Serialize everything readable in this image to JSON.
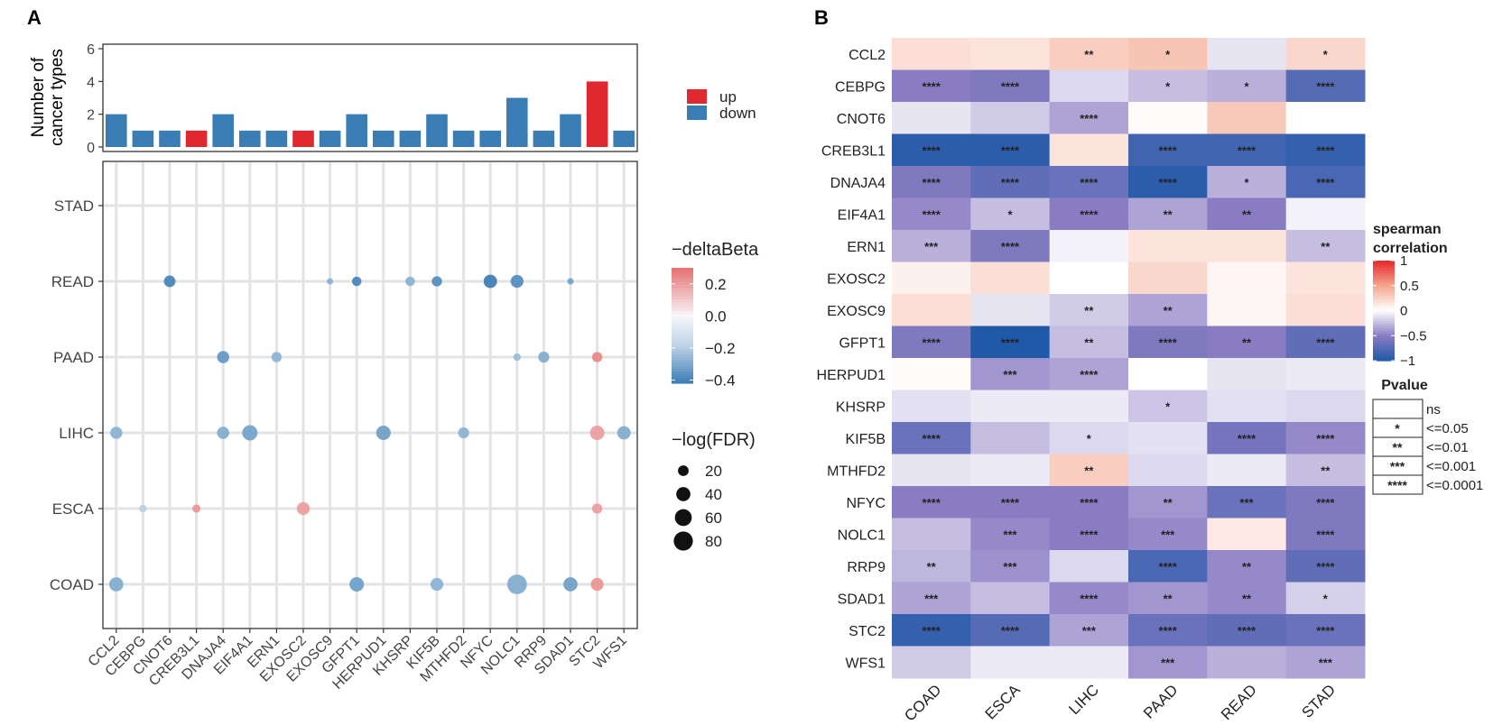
{
  "chart_data": [
    {
      "panel": "A",
      "type": "bar",
      "title": "",
      "ylabel": "Number of cancer types",
      "ylim": [
        0,
        6
      ],
      "yticks": [
        "0",
        "2",
        "4",
        "6"
      ],
      "categories": [
        "CCL2",
        "CEBPG",
        "CNOT6",
        "CREB3L1",
        "DNAJA4",
        "EIF4A1",
        "ERN1",
        "EXOSC2",
        "EXOSC9",
        "GFPT1",
        "HERPUD1",
        "KHSRP",
        "KIF5B",
        "MTHFD2",
        "NFYC",
        "NOLC1",
        "RRP9",
        "SDAD1",
        "STC2",
        "WFS1"
      ],
      "values": [
        2,
        1,
        1,
        1,
        2,
        1,
        1,
        1,
        1,
        2,
        1,
        1,
        2,
        1,
        1,
        3,
        1,
        2,
        4,
        1
      ],
      "direction": [
        "down",
        "down",
        "down",
        "up",
        "down",
        "down",
        "down",
        "up",
        "down",
        "down",
        "down",
        "down",
        "down",
        "down",
        "down",
        "down",
        "down",
        "down",
        "up",
        "down"
      ],
      "legend": [
        {
          "key": "up",
          "label": "up",
          "color": "#e0292e"
        },
        {
          "key": "down",
          "label": "down",
          "color": "#3a7db5"
        }
      ]
    },
    {
      "panel": "A",
      "type": "scatter",
      "x_categories": [
        "CCL2",
        "CEBPG",
        "CNOT6",
        "CREB3L1",
        "DNAJA4",
        "EIF4A1",
        "ERN1",
        "EXOSC2",
        "EXOSC9",
        "GFPT1",
        "HERPUD1",
        "KHSRP",
        "KIF5B",
        "MTHFD2",
        "NFYC",
        "NOLC1",
        "RRP9",
        "SDAD1",
        "STC2",
        "WFS1"
      ],
      "y_categories": [
        "COAD",
        "ESCA",
        "LIHC",
        "PAAD",
        "READ",
        "STAD"
      ],
      "points": [
        {
          "gene": "CNOT6",
          "cancer": "READ",
          "deltaBeta": -0.4,
          "logFDR": 25
        },
        {
          "gene": "EXOSC9",
          "cancer": "READ",
          "deltaBeta": -0.28,
          "logFDR": 5
        },
        {
          "gene": "GFPT1",
          "cancer": "READ",
          "deltaBeta": -0.4,
          "logFDR": 15
        },
        {
          "gene": "KHSRP",
          "cancer": "READ",
          "deltaBeta": -0.28,
          "logFDR": 15
        },
        {
          "gene": "KIF5B",
          "cancer": "READ",
          "deltaBeta": -0.38,
          "logFDR": 18
        },
        {
          "gene": "NFYC",
          "cancer": "READ",
          "deltaBeta": -0.42,
          "logFDR": 35
        },
        {
          "gene": "NOLC1",
          "cancer": "READ",
          "deltaBeta": -0.38,
          "logFDR": 32
        },
        {
          "gene": "SDAD1",
          "cancer": "READ",
          "deltaBeta": -0.32,
          "logFDR": 5
        },
        {
          "gene": "DNAJA4",
          "cancer": "PAAD",
          "deltaBeta": -0.35,
          "logFDR": 28
        },
        {
          "gene": "ERN1",
          "cancer": "PAAD",
          "deltaBeta": -0.28,
          "logFDR": 18
        },
        {
          "gene": "NOLC1",
          "cancer": "PAAD",
          "deltaBeta": -0.25,
          "logFDR": 8
        },
        {
          "gene": "RRP9",
          "cancer": "PAAD",
          "deltaBeta": -0.3,
          "logFDR": 22
        },
        {
          "gene": "STC2",
          "cancer": "PAAD",
          "deltaBeta": 0.25,
          "logFDR": 18
        },
        {
          "gene": "CCL2",
          "cancer": "LIHC",
          "deltaBeta": -0.28,
          "logFDR": 28
        },
        {
          "gene": "DNAJA4",
          "cancer": "LIHC",
          "deltaBeta": -0.3,
          "logFDR": 28
        },
        {
          "gene": "EIF4A1",
          "cancer": "LIHC",
          "deltaBeta": -0.32,
          "logFDR": 48
        },
        {
          "gene": "HERPUD1",
          "cancer": "LIHC",
          "deltaBeta": -0.33,
          "logFDR": 42
        },
        {
          "gene": "MTHFD2",
          "cancer": "LIHC",
          "deltaBeta": -0.28,
          "logFDR": 22
        },
        {
          "gene": "STC2",
          "cancer": "LIHC",
          "deltaBeta": 0.2,
          "logFDR": 42
        },
        {
          "gene": "WFS1",
          "cancer": "LIHC",
          "deltaBeta": -0.3,
          "logFDR": 35
        },
        {
          "gene": "CEBPG",
          "cancer": "ESCA",
          "deltaBeta": -0.2,
          "logFDR": 8
        },
        {
          "gene": "CREB3L1",
          "cancer": "ESCA",
          "deltaBeta": 0.22,
          "logFDR": 10
        },
        {
          "gene": "EXOSC2",
          "cancer": "ESCA",
          "deltaBeta": 0.2,
          "logFDR": 32
        },
        {
          "gene": "STC2",
          "cancer": "ESCA",
          "deltaBeta": 0.2,
          "logFDR": 18
        },
        {
          "gene": "CCL2",
          "cancer": "COAD",
          "deltaBeta": -0.3,
          "logFDR": 40
        },
        {
          "gene": "GFPT1",
          "cancer": "COAD",
          "deltaBeta": -0.33,
          "logFDR": 42
        },
        {
          "gene": "KIF5B",
          "cancer": "COAD",
          "deltaBeta": -0.28,
          "logFDR": 32
        },
        {
          "gene": "NOLC1",
          "cancer": "COAD",
          "deltaBeta": -0.3,
          "logFDR": 85
        },
        {
          "gene": "SDAD1",
          "cancer": "COAD",
          "deltaBeta": -0.33,
          "logFDR": 40
        },
        {
          "gene": "STC2",
          "cancer": "COAD",
          "deltaBeta": 0.22,
          "logFDR": 32
        }
      ],
      "color_legend": {
        "title": "−deltaBeta",
        "ticks": [
          "0.2",
          "0.0",
          "−0.2",
          "−0.4"
        ],
        "tick_values": [
          0.2,
          0.0,
          -0.2,
          -0.4
        ],
        "range": [
          -0.42,
          0.3
        ]
      },
      "size_legend": {
        "title": "−log(FDR)",
        "values": [
          20,
          40,
          60,
          80
        ],
        "labels": [
          "20",
          "40",
          "60",
          "80"
        ]
      }
    },
    {
      "panel": "B",
      "type": "heatmap",
      "columns": [
        "COAD",
        "ESCA",
        "LIHC",
        "PAAD",
        "READ",
        "STAD"
      ],
      "rows": [
        "CCL2",
        "CEBPG",
        "CNOT6",
        "CREB3L1",
        "DNAJA4",
        "EIF4A1",
        "ERN1",
        "EXOSC2",
        "EXOSC9",
        "GFPT1",
        "HERPUD1",
        "KHSRP",
        "KIF5B",
        "MTHFD2",
        "NFYC",
        "NOLC1",
        "RRP9",
        "SDAD1",
        "STC2",
        "WFS1"
      ],
      "values": [
        [
          0.18,
          0.15,
          0.28,
          0.33,
          -0.1,
          0.22
        ],
        [
          -0.5,
          -0.55,
          -0.15,
          -0.25,
          -0.3,
          -0.75
        ],
        [
          -0.1,
          -0.2,
          -0.35,
          0.02,
          0.3,
          0.0
        ],
        [
          -0.95,
          -0.95,
          0.15,
          -0.85,
          -0.85,
          -0.9
        ],
        [
          -0.55,
          -0.7,
          -0.65,
          -0.95,
          -0.3,
          -0.8
        ],
        [
          -0.45,
          -0.25,
          -0.5,
          -0.35,
          -0.5,
          -0.05
        ],
        [
          -0.3,
          -0.55,
          -0.05,
          0.15,
          0.15,
          -0.25
        ],
        [
          0.08,
          0.18,
          0.0,
          0.22,
          0.05,
          0.15
        ],
        [
          0.18,
          -0.1,
          -0.2,
          -0.35,
          0.05,
          0.18
        ],
        [
          -0.55,
          -1.0,
          -0.25,
          -0.55,
          -0.5,
          -0.7
        ],
        [
          0.02,
          -0.4,
          -0.35,
          0.0,
          -0.1,
          -0.08
        ],
        [
          -0.12,
          -0.08,
          -0.08,
          -0.22,
          -0.12,
          -0.15
        ],
        [
          -0.65,
          -0.25,
          -0.15,
          -0.12,
          -0.6,
          -0.45
        ],
        [
          -0.1,
          -0.08,
          0.28,
          -0.15,
          -0.08,
          -0.25
        ],
        [
          -0.5,
          -0.5,
          -0.5,
          -0.4,
          -0.65,
          -0.55
        ],
        [
          -0.25,
          -0.45,
          -0.5,
          -0.45,
          0.12,
          -0.55
        ],
        [
          -0.28,
          -0.42,
          -0.15,
          -0.8,
          -0.45,
          -0.7
        ],
        [
          -0.35,
          -0.25,
          -0.45,
          -0.4,
          -0.45,
          -0.18
        ],
        [
          -0.9,
          -0.75,
          -0.35,
          -0.65,
          -0.7,
          -0.65
        ],
        [
          -0.2,
          -0.08,
          -0.08,
          -0.4,
          -0.3,
          -0.35
        ]
      ],
      "significance": [
        [
          "",
          "",
          "**",
          "*",
          "",
          "*"
        ],
        [
          "****",
          "****",
          "",
          "*",
          "*",
          "****"
        ],
        [
          "",
          "",
          "****",
          "",
          "",
          ""
        ],
        [
          "****",
          "****",
          "",
          "****",
          "****",
          "****"
        ],
        [
          "****",
          "****",
          "****",
          "****",
          "*",
          "****"
        ],
        [
          "****",
          "*",
          "****",
          "**",
          "**",
          ""
        ],
        [
          "***",
          "****",
          "",
          "",
          "",
          "**"
        ],
        [
          "",
          "",
          "",
          "",
          "",
          ""
        ],
        [
          "",
          "",
          "**",
          "**",
          "",
          ""
        ],
        [
          "****",
          "****",
          "**",
          "****",
          "**",
          "****"
        ],
        [
          "",
          "***",
          "****",
          "",
          "",
          ""
        ],
        [
          "",
          "",
          "",
          "*",
          "",
          ""
        ],
        [
          "****",
          "",
          "*",
          "",
          "****",
          "****"
        ],
        [
          "",
          "",
          "**",
          "",
          "",
          "**"
        ],
        [
          "****",
          "****",
          "****",
          "**",
          "***",
          "****"
        ],
        [
          "",
          "***",
          "****",
          "***",
          "",
          "****"
        ],
        [
          "**",
          "***",
          "",
          "****",
          "**",
          "****"
        ],
        [
          "***",
          "",
          "****",
          "**",
          "**",
          "*"
        ],
        [
          "****",
          "****",
          "***",
          "****",
          "****",
          "****"
        ],
        [
          "",
          "",
          "",
          "***",
          "",
          "***"
        ]
      ],
      "color_legend": {
        "title_line1": "spearman",
        "title_line2": "correlation",
        "ticks": [
          "1",
          "0.5",
          "0",
          "−0.5",
          "−1"
        ],
        "tick_values": [
          1,
          0.5,
          0,
          -0.5,
          -1
        ],
        "colors": {
          "low": "#2059a8",
          "mid_low": "#8a7cc3",
          "zero": "#ffffff",
          "high": "#e8262b"
        }
      },
      "pvalue_legend": {
        "title": "Pvalue",
        "rows": [
          {
            "symbol": "",
            "label": "ns"
          },
          {
            "symbol": "*",
            "label": "<=0.05"
          },
          {
            "symbol": "**",
            "label": "<=0.01"
          },
          {
            "symbol": "***",
            "label": "<=0.001"
          },
          {
            "symbol": "****",
            "label": "<=0.0001"
          }
        ]
      }
    }
  ],
  "panel_labels": {
    "a": "A",
    "b": "B"
  },
  "ylabel_lines": [
    "Number of",
    "cancer types"
  ]
}
